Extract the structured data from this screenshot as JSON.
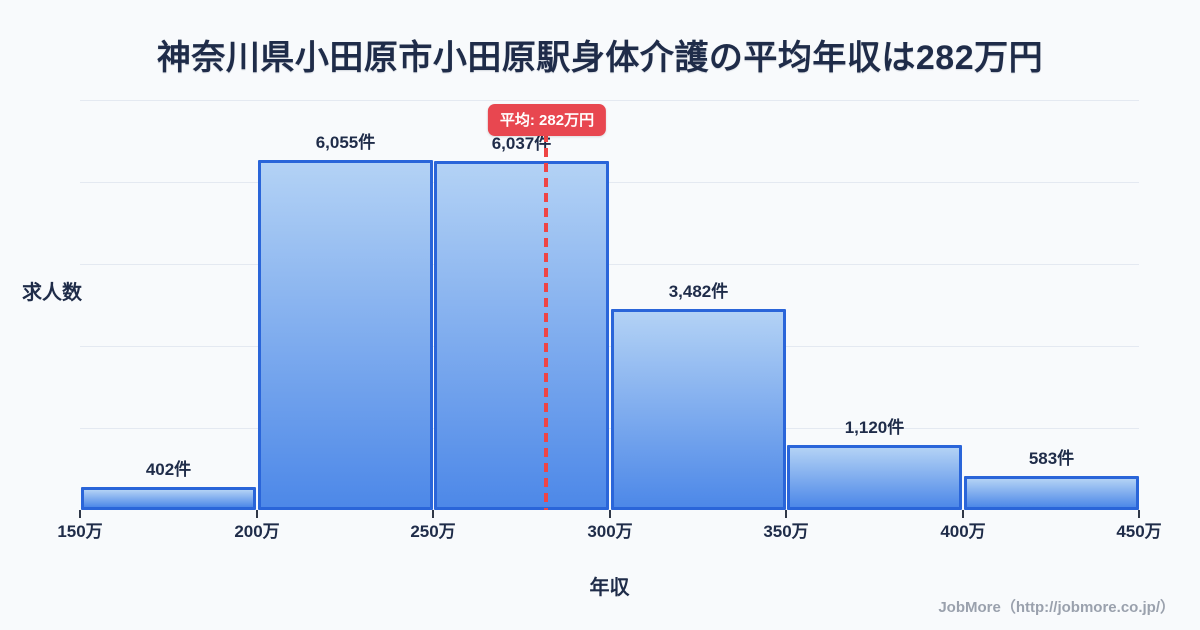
{
  "chart_data": {
    "type": "bar",
    "title": "神奈川県小田原市小田原駅身体介護の平均年収は282万円",
    "categories": [
      "150万-200万",
      "200万-250万",
      "250万-300万",
      "300万-350万",
      "350万-400万",
      "400万-450万"
    ],
    "values": [
      402,
      6055,
      6037,
      3482,
      1120,
      583
    ],
    "value_labels": [
      "402件",
      "6,055件",
      "6,037件",
      "3,482件",
      "1,120件",
      "583件"
    ],
    "x_tick_labels": [
      "150万",
      "200万",
      "250万",
      "300万",
      "350万",
      "400万",
      "450万"
    ],
    "x_range": [
      150,
      450
    ],
    "xlabel": "年収",
    "ylabel": "求人数",
    "ylim": [
      0,
      7100
    ],
    "grid": "horizontal",
    "gridline_count": 5,
    "legend": "none",
    "average_line": {
      "value": 282,
      "label": "平均: 282万円",
      "style": "dashed-red"
    }
  },
  "footer": {
    "credit": "JobMore（http://jobmore.co.jp/）"
  },
  "colors": {
    "bg": "#f8fafc",
    "navy": "#1f2c49",
    "red": "#e84750",
    "line-red": "#ee4545",
    "bar-top": "#b3d2f5",
    "bar-bottom": "#4d88e8",
    "bar-border": "#2a65d9",
    "grid": "#e4e9f1",
    "gray": "#9aa1ad"
  }
}
